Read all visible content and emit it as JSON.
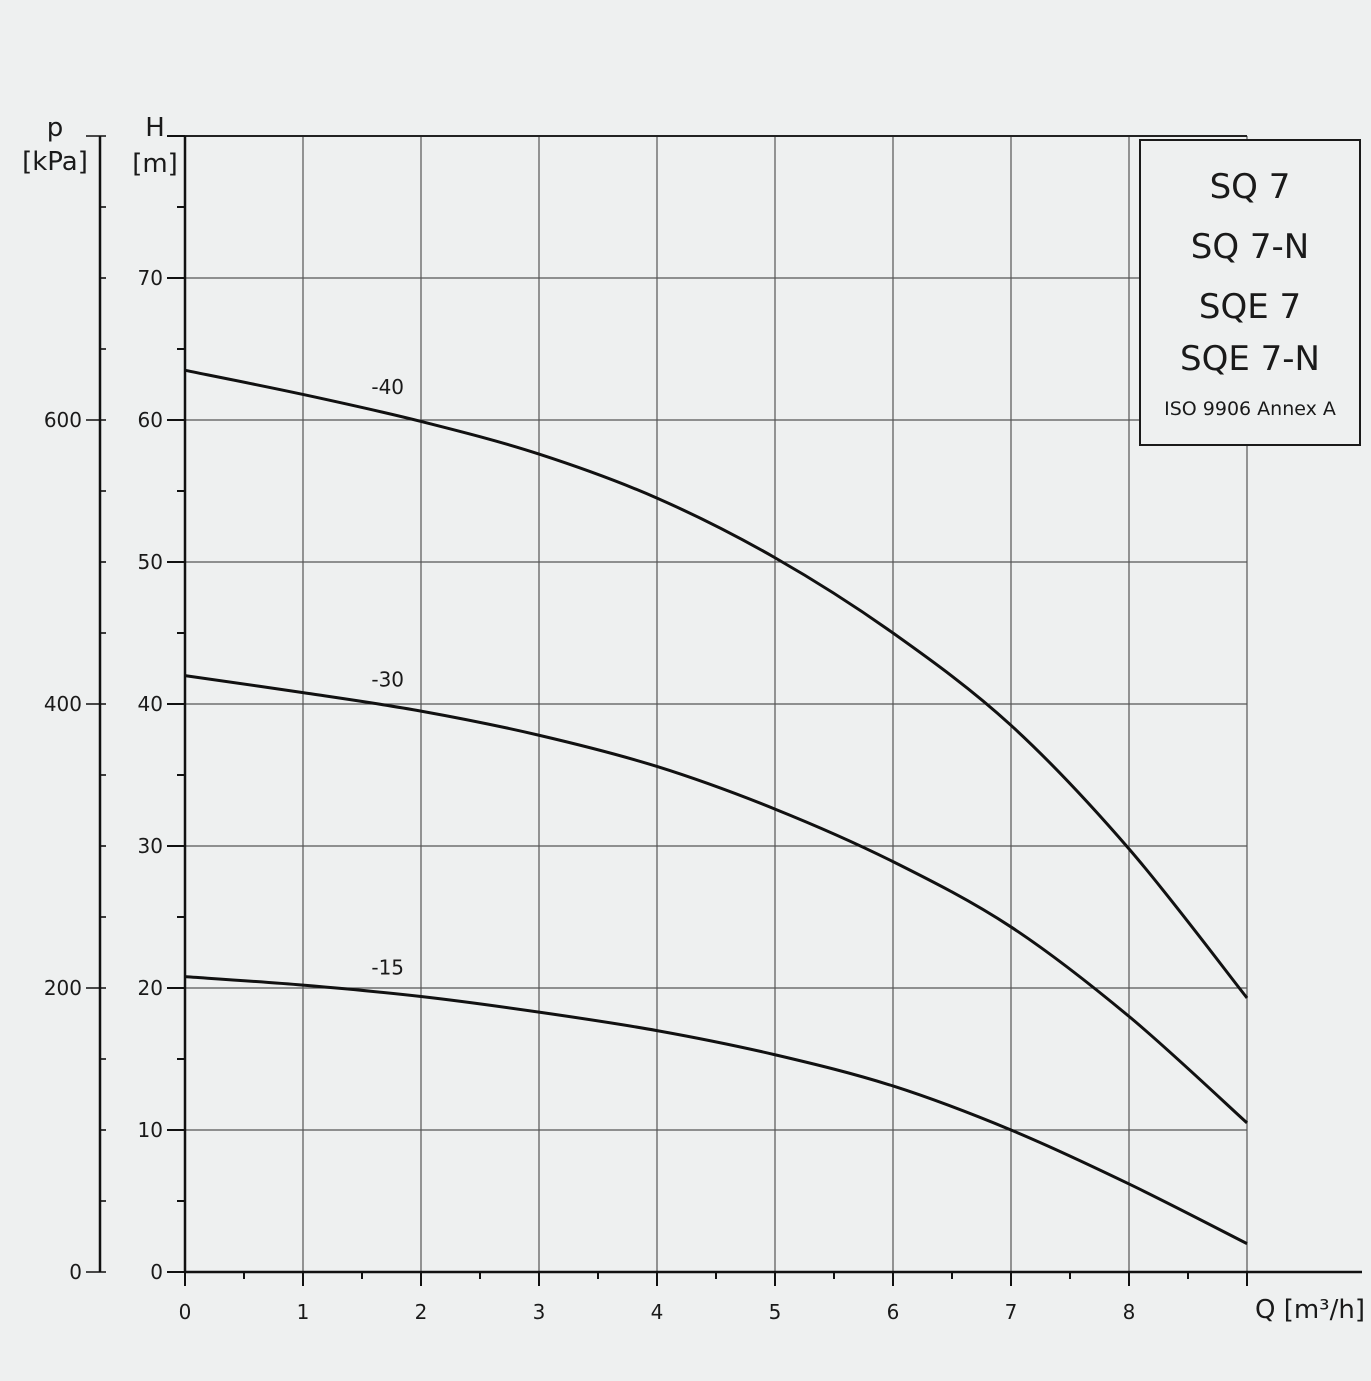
{
  "chart_data": {
    "type": "line",
    "x_axis": {
      "label": "Q [m³/h]",
      "range": [
        0,
        9
      ],
      "ticks": [
        "0",
        "1",
        "2",
        "3",
        "4",
        "5",
        "6",
        "7",
        "8"
      ]
    },
    "y_axis_left_H": {
      "symbol": "H",
      "unit": "[m]",
      "range": [
        0,
        80
      ],
      "ticks": [
        "0",
        "10",
        "20",
        "30",
        "40",
        "50",
        "60",
        "70"
      ]
    },
    "y_axis_left_p": {
      "symbol": "p",
      "unit": "[kPa]",
      "range": [
        0,
        800
      ],
      "ticks": [
        "0",
        "200",
        "400",
        "600"
      ]
    },
    "grid": true,
    "series": [
      {
        "name": "-40",
        "points": [
          [
            0,
            63.5
          ],
          [
            1,
            61.8
          ],
          [
            2,
            59.9
          ],
          [
            3,
            57.6
          ],
          [
            4,
            54.5
          ],
          [
            5,
            50.3
          ],
          [
            6,
            45.0
          ],
          [
            7,
            38.5
          ],
          [
            8,
            29.8
          ],
          [
            9,
            19.3
          ]
        ]
      },
      {
        "name": "-30",
        "points": [
          [
            0,
            42.0
          ],
          [
            1,
            40.8
          ],
          [
            2,
            39.5
          ],
          [
            3,
            37.8
          ],
          [
            4,
            35.6
          ],
          [
            5,
            32.6
          ],
          [
            6,
            28.9
          ],
          [
            7,
            24.3
          ],
          [
            8,
            18.0
          ],
          [
            9,
            10.5
          ]
        ]
      },
      {
        "name": "-15",
        "points": [
          [
            0,
            20.8
          ],
          [
            1,
            20.2
          ],
          [
            2,
            19.4
          ],
          [
            3,
            18.3
          ],
          [
            4,
            17.0
          ],
          [
            5,
            15.3
          ],
          [
            6,
            13.1
          ],
          [
            7,
            10.0
          ],
          [
            8,
            6.2
          ],
          [
            9,
            2.0
          ]
        ]
      }
    ],
    "legend": {
      "placement": "top-right",
      "models": [
        "SQ 7",
        "SQ 7-N",
        "SQE 7",
        "SQE 7-N"
      ],
      "standard": "ISO 9906 Annex A"
    }
  }
}
